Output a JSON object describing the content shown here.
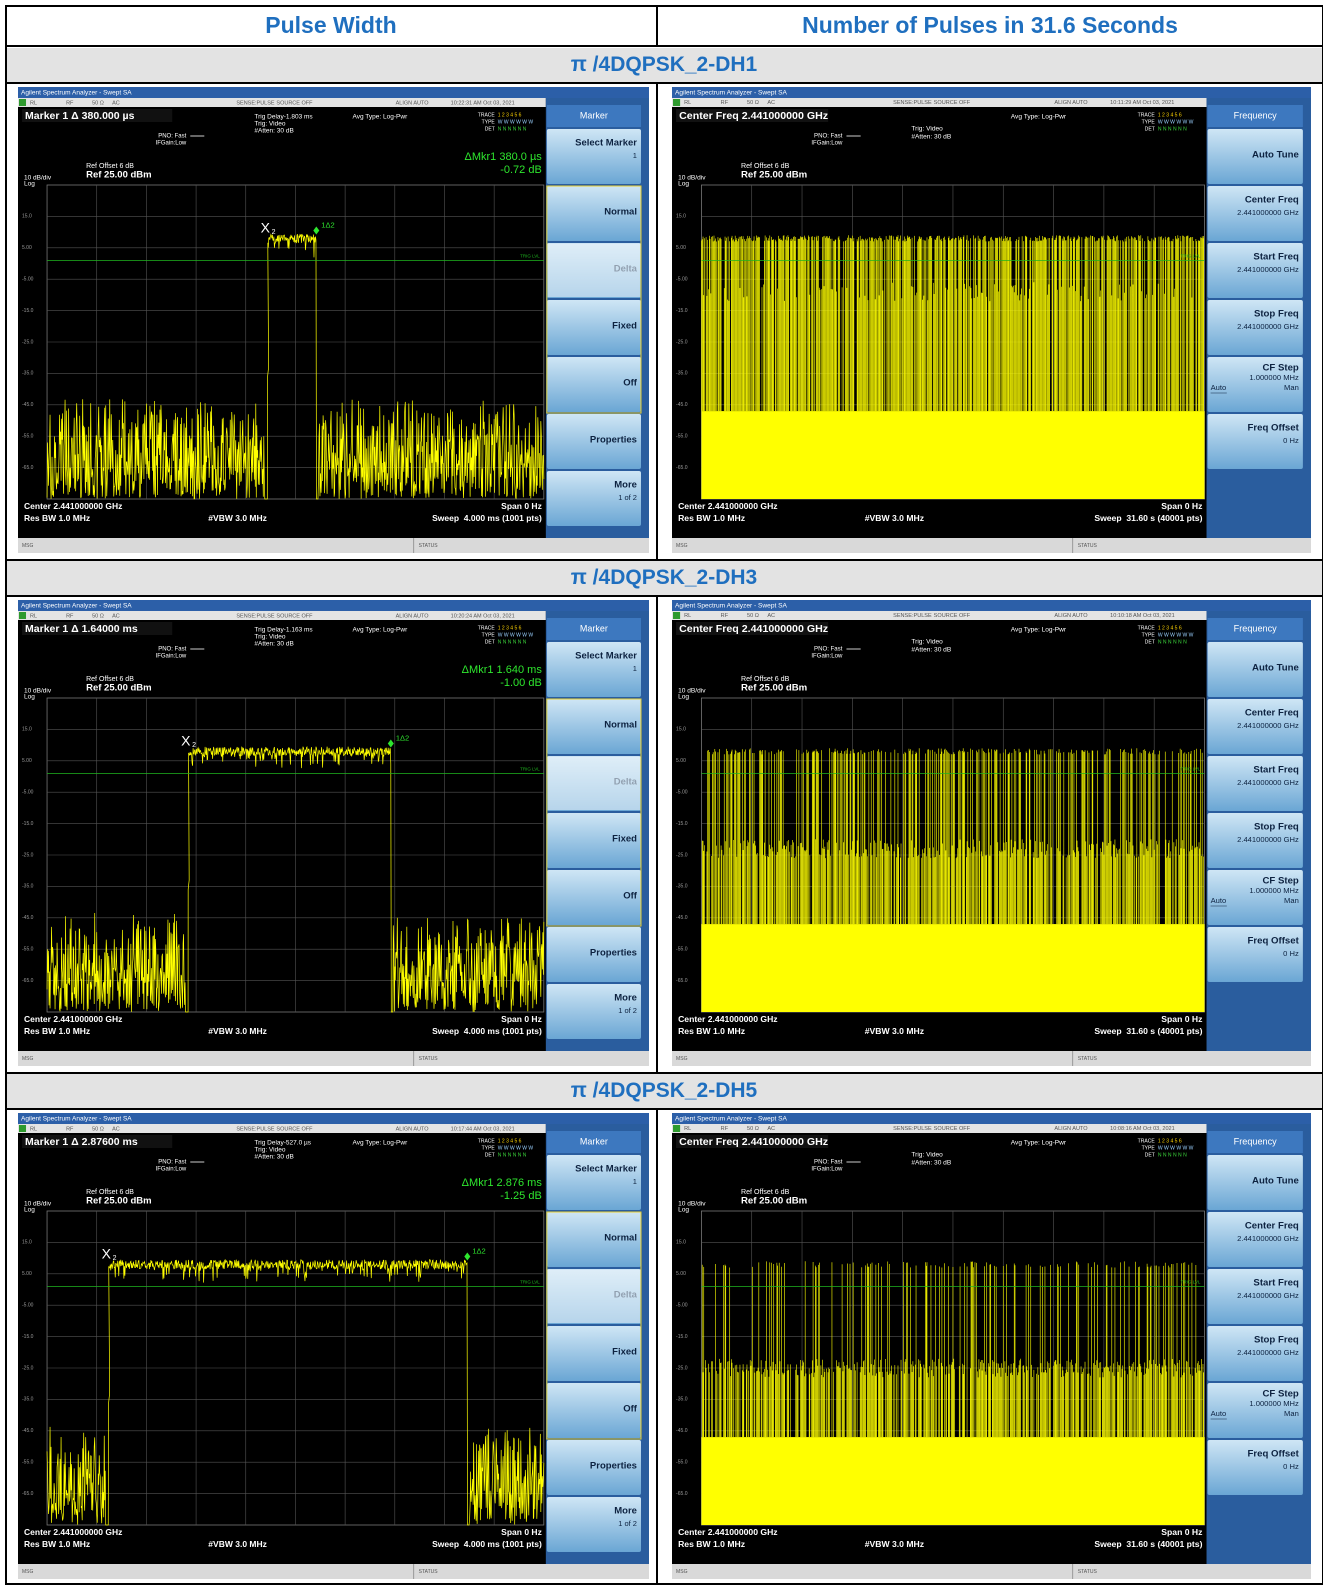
{
  "header": {
    "col1": "Pulse Width",
    "col2": "Number of Pulses in 31.6 Seconds"
  },
  "sections": [
    {
      "title": "π /4DQPSK_2-DH1",
      "pulse_width": {
        "app_title": "Agilent Spectrum Analyzer - Swept SA",
        "status": [
          "RL",
          "RF",
          "50 Ω",
          "AC",
          "SENSE:PULSE",
          "SOURCE OFF",
          "ALIGN AUTO",
          "10:22:31 AM Oct 03, 2021"
        ],
        "marker_line": "Marker 1 Δ 380.000 µs",
        "pno": "PNO: Fast",
        "ifgain": "IFGain:Low",
        "trig_delay": "Trig Delay-1.803 ms",
        "trig": "Trig: Video",
        "atten": "#Atten: 30 dB",
        "avg_type": "Avg Type: Log-Pwr",
        "trace_rows": [
          [
            "TRACE",
            "1 2 3 4 5 6"
          ],
          [
            "TYPE",
            "W W W W W W"
          ],
          [
            "DET",
            "N N N N N N"
          ]
        ],
        "readout": [
          "ΔMkr1 380.0 µs",
          "-0.72 dB"
        ],
        "ref_offset": "Ref Offset 6 dB",
        "ref_level": "Ref 25.00 dBm",
        "scale": "10 dB/div",
        "log": "Log",
        "y_labels": [
          "15.0",
          "5.00",
          "-5.00",
          "-15.0",
          "-25.0",
          "-35.0",
          "-45.0",
          "-55.0",
          "-65.0"
        ],
        "trig_lvl": "TRIG LVL",
        "marker_labels": [
          "X",
          "2",
          "1Δ2"
        ],
        "center": "Center 2.441000000 GHz",
        "span": "Span 0 Hz",
        "rbw": "Res BW 1.0 MHz",
        "vbw": "#VBW 3.0 MHz",
        "sweep": "Sweep  4.000 ms (1001 pts)",
        "msg": "MSG",
        "status_label": "STATUS",
        "menu_title": "Marker",
        "softkeys": [
          {
            "label": "Select Marker",
            "sub": [
              "1"
            ]
          },
          {
            "label": "Normal"
          },
          {
            "label": "Delta"
          },
          {
            "label": "Fixed"
          },
          {
            "label": "Off"
          },
          {
            "label": "Properties"
          },
          {
            "label": "More",
            "sub": [
              "1 of 2"
            ]
          }
        ]
      },
      "pulses": {
        "app_title": "Agilent Spectrum Analyzer - Swept SA",
        "status": [
          "RL",
          "RF",
          "50 Ω",
          "AC",
          "SENSE:PULSE",
          "SOURCE OFF",
          "ALIGN AUTO",
          "10:11:29 AM Oct 03, 2021"
        ],
        "marker_line": "Center Freq 2.441000000 GHz",
        "pno": "PNO: Fast",
        "ifgain": "IFGain:Low",
        "trig": "Trig: Video",
        "atten": "#Atten: 30 dB",
        "avg_type": "Avg Type: Log-Pwr",
        "trace_rows": [
          [
            "TRACE",
            "1 2 3 4 5 6"
          ],
          [
            "TYPE",
            "W W W W W W"
          ],
          [
            "DET",
            "N N N N N N"
          ]
        ],
        "ref_offset": "Ref Offset 6 dB",
        "ref_level": "Ref 25.00 dBm",
        "scale": "10 dB/div",
        "log": "Log",
        "y_labels": [
          "15.0",
          "5.00",
          "-5.00",
          "-15.0",
          "-25.0",
          "-35.0",
          "-45.0",
          "-55.0",
          "-65.0"
        ],
        "trig_lvl": "TRIG LVL",
        "center": "Center 2.441000000 GHz",
        "span": "Span 0 Hz",
        "rbw": "Res BW 1.0 MHz",
        "vbw": "#VBW 3.0 MHz",
        "sweep": "Sweep  31.60 s (40001 pts)",
        "msg": "MSG",
        "status_label": "STATUS",
        "menu_title": "Frequency",
        "softkeys": [
          {
            "label": "Auto Tune"
          },
          {
            "label": "Center Freq",
            "sub": [
              "2.441000000 GHz"
            ]
          },
          {
            "label": "Start Freq",
            "sub": [
              "2.441000000 GHz"
            ]
          },
          {
            "label": "Stop Freq",
            "sub": [
              "2.441000000 GHz"
            ]
          },
          {
            "label": "CF Step",
            "sub": [
              "1.000000 MHz"
            ],
            "options": [
              "Auto",
              "Man"
            ]
          },
          {
            "label": "Freq Offset",
            "sub": [
              "0 Hz"
            ]
          }
        ]
      }
    },
    {
      "title": "π /4DQPSK_2-DH3",
      "pulse_width": {
        "app_title": "Agilent Spectrum Analyzer - Swept SA",
        "status": [
          "RL",
          "RF",
          "50 Ω",
          "AC",
          "SENSE:PULSE",
          "SOURCE OFF",
          "ALIGN AUTO",
          "10:20:24 AM Oct 03, 2021"
        ],
        "marker_line": "Marker 1 Δ 1.64000 ms",
        "pno": "PNO: Fast",
        "ifgain": "IFGain:Low",
        "trig_delay": "Trig Delay-1.163 ms",
        "trig": "Trig: Video",
        "atten": "#Atten: 30 dB",
        "avg_type": "Avg Type: Log-Pwr",
        "trace_rows": [
          [
            "TRACE",
            "1 2 3 4 5 6"
          ],
          [
            "TYPE",
            "W W W W W W"
          ],
          [
            "DET",
            "N N N N N N"
          ]
        ],
        "readout": [
          "ΔMkr1 1.640 ms",
          "-1.00 dB"
        ],
        "ref_offset": "Ref Offset 6 dB",
        "ref_level": "Ref 25.00 dBm",
        "scale": "10 dB/div",
        "log": "Log",
        "y_labels": [
          "15.0",
          "5.00",
          "-5.00",
          "-15.0",
          "-25.0",
          "-35.0",
          "-45.0",
          "-55.0",
          "-65.0"
        ],
        "trig_lvl": "TRIG LVL",
        "marker_labels": [
          "X",
          "2",
          "1Δ2"
        ],
        "center": "Center 2.441000000 GHz",
        "span": "Span 0 Hz",
        "rbw": "Res BW 1.0 MHz",
        "vbw": "#VBW 3.0 MHz",
        "sweep": "Sweep  4.000 ms (1001 pts)",
        "msg": "MSG",
        "status_label": "STATUS",
        "menu_title": "Marker",
        "softkeys": [
          {
            "label": "Select Marker",
            "sub": [
              "1"
            ]
          },
          {
            "label": "Normal"
          },
          {
            "label": "Delta"
          },
          {
            "label": "Fixed"
          },
          {
            "label": "Off"
          },
          {
            "label": "Properties"
          },
          {
            "label": "More",
            "sub": [
              "1 of 2"
            ]
          }
        ]
      },
      "pulses": {
        "app_title": "Agilent Spectrum Analyzer - Swept SA",
        "status": [
          "RL",
          "RF",
          "50 Ω",
          "AC",
          "SENSE:PULSE",
          "SOURCE OFF",
          "ALIGN AUTO",
          "10:10:18 AM Oct 03, 2021"
        ],
        "marker_line": "Center Freq 2.441000000 GHz",
        "pno": "PNO: Fast",
        "ifgain": "IFGain:Low",
        "trig": "Trig: Video",
        "atten": "#Atten: 30 dB",
        "avg_type": "Avg Type: Log-Pwr",
        "trace_rows": [
          [
            "TRACE",
            "1 2 3 4 5 6"
          ],
          [
            "TYPE",
            "W W W W W W"
          ],
          [
            "DET",
            "N N N N N N"
          ]
        ],
        "ref_offset": "Ref Offset 6 dB",
        "ref_level": "Ref 25.00 dBm",
        "scale": "10 dB/div",
        "log": "Log",
        "y_labels": [
          "15.0",
          "5.00",
          "-5.00",
          "-15.0",
          "-25.0",
          "-35.0",
          "-45.0",
          "-55.0",
          "-65.0"
        ],
        "trig_lvl": "TRIG LVL",
        "center": "Center 2.441000000 GHz",
        "span": "Span 0 Hz",
        "rbw": "Res BW 1.0 MHz",
        "vbw": "#VBW 3.0 MHz",
        "sweep": "Sweep  31.60 s (40001 pts)",
        "msg": "MSG",
        "status_label": "STATUS",
        "menu_title": "Frequency",
        "softkeys": [
          {
            "label": "Auto Tune"
          },
          {
            "label": "Center Freq",
            "sub": [
              "2.441000000 GHz"
            ]
          },
          {
            "label": "Start Freq",
            "sub": [
              "2.441000000 GHz"
            ]
          },
          {
            "label": "Stop Freq",
            "sub": [
              "2.441000000 GHz"
            ]
          },
          {
            "label": "CF Step",
            "sub": [
              "1.000000 MHz"
            ],
            "options": [
              "Auto",
              "Man"
            ]
          },
          {
            "label": "Freq Offset",
            "sub": [
              "0 Hz"
            ]
          }
        ]
      }
    },
    {
      "title": "π /4DQPSK_2-DH5",
      "pulse_width": {
        "app_title": "Agilent Spectrum Analyzer - Swept SA",
        "status": [
          "RL",
          "RF",
          "50 Ω",
          "AC",
          "SENSE:PULSE",
          "SOURCE OFF",
          "ALIGN AUTO",
          "10:17:44 AM Oct 03, 2021"
        ],
        "marker_line": "Marker 1 Δ 2.87600 ms",
        "pno": "PNO: Fast",
        "ifgain": "IFGain:Low",
        "trig_delay": "Trig Delay-527.0 µs",
        "trig": "Trig: Video",
        "atten": "#Atten: 30 dB",
        "avg_type": "Avg Type: Log-Pwr",
        "trace_rows": [
          [
            "TRACE",
            "1 2 3 4 5 6"
          ],
          [
            "TYPE",
            "W W W W W W"
          ],
          [
            "DET",
            "N N N N N N"
          ]
        ],
        "readout": [
          "ΔMkr1 2.876 ms",
          "-1.25 dB"
        ],
        "ref_offset": "Ref Offset 6 dB",
        "ref_level": "Ref 25.00 dBm",
        "scale": "10 dB/div",
        "log": "Log",
        "y_labels": [
          "15.0",
          "5.00",
          "-5.00",
          "-15.0",
          "-25.0",
          "-35.0",
          "-45.0",
          "-55.0",
          "-65.0"
        ],
        "trig_lvl": "TRIG LVL",
        "marker_labels": [
          "X",
          "2",
          "1Δ2"
        ],
        "center": "Center 2.441000000 GHz",
        "span": "Span 0 Hz",
        "rbw": "Res BW 1.0 MHz",
        "vbw": "#VBW 3.0 MHz",
        "sweep": "Sweep  4.000 ms (1001 pts)",
        "msg": "MSG",
        "status_label": "STATUS",
        "menu_title": "Marker",
        "softkeys": [
          {
            "label": "Select Marker",
            "sub": [
              "1"
            ]
          },
          {
            "label": "Normal"
          },
          {
            "label": "Delta"
          },
          {
            "label": "Fixed"
          },
          {
            "label": "Off"
          },
          {
            "label": "Properties"
          },
          {
            "label": "More",
            "sub": [
              "1 of 2"
            ]
          }
        ]
      },
      "pulses": {
        "app_title": "Agilent Spectrum Analyzer - Swept SA",
        "status": [
          "RL",
          "RF",
          "50 Ω",
          "AC",
          "SENSE:PULSE",
          "SOURCE OFF",
          "ALIGN AUTO",
          "10:08:16 AM Oct 03, 2021"
        ],
        "marker_line": "Center Freq 2.441000000 GHz",
        "pno": "PNO: Fast",
        "ifgain": "IFGain:Low",
        "trig": "Trig: Video",
        "atten": "#Atten: 30 dB",
        "avg_type": "Avg Type: Log-Pwr",
        "trace_rows": [
          [
            "TRACE",
            "1 2 3 4 5 6"
          ],
          [
            "TYPE",
            "W W W W W W"
          ],
          [
            "DET",
            "N N N N N N"
          ]
        ],
        "ref_offset": "Ref Offset 6 dB",
        "ref_level": "Ref 25.00 dBm",
        "scale": "10 dB/div",
        "log": "Log",
        "y_labels": [
          "15.0",
          "5.00",
          "-5.00",
          "-15.0",
          "-25.0",
          "-35.0",
          "-45.0",
          "-55.0",
          "-65.0"
        ],
        "trig_lvl": "TRIG LVL",
        "center": "Center 2.441000000 GHz",
        "span": "Span 0 Hz",
        "rbw": "Res BW 1.0 MHz",
        "vbw": "#VBW 3.0 MHz",
        "sweep": "Sweep  31.60 s (40001 pts)",
        "msg": "MSG",
        "status_label": "STATUS",
        "menu_title": "Frequency",
        "softkeys": [
          {
            "label": "Auto Tune"
          },
          {
            "label": "Center Freq",
            "sub": [
              "2.441000000 GHz"
            ]
          },
          {
            "label": "Start Freq",
            "sub": [
              "2.441000000 GHz"
            ]
          },
          {
            "label": "Stop Freq",
            "sub": [
              "2.441000000 GHz"
            ]
          },
          {
            "label": "CF Step",
            "sub": [
              "1.000000 MHz"
            ],
            "options": [
              "Auto",
              "Man"
            ]
          },
          {
            "label": "Freq Offset",
            "sub": [
              "0 Hz"
            ]
          }
        ]
      }
    }
  ]
}
